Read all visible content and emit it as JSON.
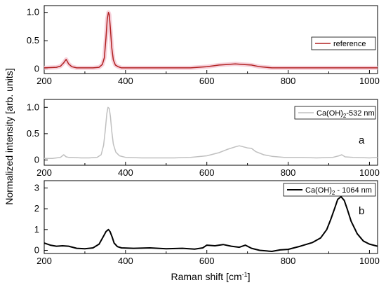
{
  "chart_data": [
    {
      "type": "line",
      "panel_label": "",
      "legend": "reference",
      "legend_position": "top-right",
      "xlim": [
        200,
        1020
      ],
      "ylim": [
        -0.08,
        1.12
      ],
      "xticks": [
        200,
        400,
        600,
        800,
        1000
      ],
      "yticks": [
        0,
        0.5,
        1.0
      ],
      "ytick_labels": [
        "0",
        "0.5",
        "1.0"
      ],
      "series": [
        {
          "name": "reference",
          "color": "#b22222",
          "band_color": "#f4c6d2",
          "x": [
            200,
            230,
            240,
            248,
            254,
            260,
            268,
            280,
            300,
            320,
            335,
            343,
            348,
            352,
            355,
            358,
            360,
            363,
            366,
            370,
            375,
            382,
            390,
            410,
            450,
            500,
            560,
            600,
            630,
            650,
            670,
            690,
            710,
            730,
            760,
            800,
            850,
            900,
            950,
            1000,
            1020
          ],
          "y": [
            0.02,
            0.03,
            0.05,
            0.11,
            0.17,
            0.09,
            0.04,
            0.02,
            0.02,
            0.02,
            0.03,
            0.08,
            0.2,
            0.55,
            0.88,
            1.0,
            0.96,
            0.7,
            0.38,
            0.16,
            0.07,
            0.04,
            0.02,
            0.02,
            0.02,
            0.02,
            0.02,
            0.04,
            0.07,
            0.08,
            0.09,
            0.08,
            0.07,
            0.04,
            0.02,
            0.02,
            0.02,
            0.02,
            0.02,
            0.02,
            0.02
          ]
        }
      ]
    },
    {
      "type": "line",
      "panel_label": "a",
      "legend": "Ca(OH)2-532 nm",
      "legend_position": "top-right",
      "xlim": [
        200,
        1020
      ],
      "ylim": [
        -0.1,
        1.15
      ],
      "xticks": [
        200,
        400,
        600,
        800,
        1000
      ],
      "yticks": [
        0,
        0.5,
        1.0
      ],
      "ytick_labels": [
        "0",
        "0.5",
        "1.0"
      ],
      "series": [
        {
          "name": "Ca(OH)2-532 nm",
          "color": "#c0c0c0",
          "x": [
            200,
            220,
            240,
            248,
            254,
            260,
            270,
            290,
            310,
            330,
            340,
            346,
            350,
            354,
            357,
            360,
            363,
            366,
            370,
            376,
            385,
            400,
            440,
            480,
            520,
            560,
            600,
            630,
            650,
            670,
            680,
            690,
            700,
            710,
            720,
            740,
            760,
            790,
            830,
            870,
            910,
            925,
            932,
            940,
            960,
            1000,
            1020
          ],
          "y": [
            0.03,
            0.03,
            0.05,
            0.1,
            0.06,
            0.05,
            0.05,
            0.04,
            0.04,
            0.05,
            0.1,
            0.28,
            0.55,
            0.88,
            1.0,
            0.98,
            0.82,
            0.55,
            0.3,
            0.15,
            0.08,
            0.05,
            0.04,
            0.04,
            0.04,
            0.05,
            0.08,
            0.14,
            0.2,
            0.25,
            0.27,
            0.25,
            0.23,
            0.22,
            0.16,
            0.1,
            0.07,
            0.05,
            0.05,
            0.04,
            0.05,
            0.08,
            0.1,
            0.06,
            0.05,
            0.04,
            0.05
          ]
        }
      ]
    },
    {
      "type": "line",
      "panel_label": "b",
      "legend": "Ca(OH)2 - 1064 nm",
      "legend_position": "top-right",
      "xlim": [
        200,
        1020
      ],
      "ylim": [
        -0.15,
        3.35
      ],
      "xticks": [
        200,
        400,
        600,
        800,
        1000
      ],
      "yticks": [
        0,
        1,
        2,
        3
      ],
      "ytick_labels": [
        "0",
        "1",
        "2",
        "3"
      ],
      "series": [
        {
          "name": "Ca(OH)2 - 1064 nm",
          "color": "#000000",
          "x": [
            200,
            215,
            230,
            245,
            260,
            280,
            300,
            320,
            335,
            345,
            352,
            358,
            362,
            367,
            372,
            380,
            390,
            420,
            460,
            500,
            540,
            570,
            590,
            600,
            620,
            640,
            660,
            680,
            695,
            710,
            730,
            760,
            780,
            800,
            830,
            860,
            880,
            895,
            905,
            915,
            922,
            930,
            938,
            945,
            955,
            970,
            985,
            1000,
            1020
          ],
          "y": [
            0.35,
            0.25,
            0.2,
            0.22,
            0.2,
            0.1,
            0.08,
            0.12,
            0.3,
            0.65,
            0.9,
            1.0,
            0.9,
            0.65,
            0.35,
            0.18,
            0.12,
            0.1,
            0.12,
            0.08,
            0.1,
            0.06,
            0.12,
            0.25,
            0.22,
            0.28,
            0.2,
            0.15,
            0.25,
            0.1,
            0.0,
            -0.05,
            0.02,
            0.05,
            0.2,
            0.38,
            0.6,
            1.0,
            1.5,
            2.05,
            2.45,
            2.58,
            2.4,
            2.0,
            1.4,
            0.8,
            0.45,
            0.3,
            0.2
          ]
        }
      ]
    }
  ],
  "ylabel": "Normalized intensity [arb. units]",
  "xlabel_main": "Raman shift [cm",
  "xlabel_sup": "-1",
  "xlabel_close": "]",
  "legend_a_main": "Ca(OH)",
  "legend_a_sub": "2",
  "legend_a_rest": "-532 nm",
  "legend_b_main": "Ca(OH)",
  "legend_b_sub": "2",
  "legend_b_rest": " - 1064 nm"
}
